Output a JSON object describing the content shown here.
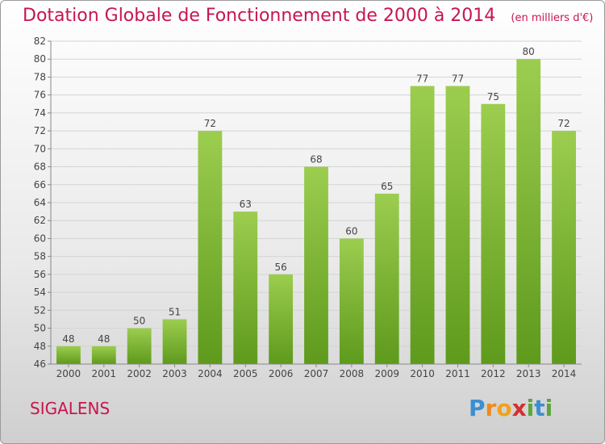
{
  "chart_data": {
    "type": "bar",
    "title": "Dotation Globale de Fonctionnement de 2000 à 2014",
    "subtitle": "(en milliers d'€)",
    "categories": [
      "2000",
      "2001",
      "2002",
      "2003",
      "2004",
      "2005",
      "2006",
      "2007",
      "2008",
      "2009",
      "2010",
      "2011",
      "2012",
      "2013",
      "2014"
    ],
    "values": [
      48,
      48,
      50,
      51,
      72,
      63,
      56,
      68,
      60,
      65,
      77,
      77,
      75,
      80,
      72
    ],
    "xlabel": "",
    "ylabel": "",
    "ylim": [
      46,
      82
    ],
    "yticks": [
      46,
      48,
      50,
      52,
      54,
      56,
      58,
      60,
      62,
      64,
      66,
      68,
      70,
      72,
      74,
      76,
      78,
      80,
      82
    ],
    "grid": true,
    "bar_color_top": "#9ccd4f",
    "bar_color_bottom": "#5e9a1c"
  },
  "commune": "SIGALENS",
  "brand": {
    "letters": [
      "P",
      "r",
      "o",
      "x",
      "i",
      "t",
      "i"
    ],
    "colors": [
      "#3a8fd3",
      "#f08a1c",
      "#f0a21c",
      "#d42f2f",
      "#5aa63a",
      "#3a8fd3",
      "#5aa63a"
    ]
  }
}
